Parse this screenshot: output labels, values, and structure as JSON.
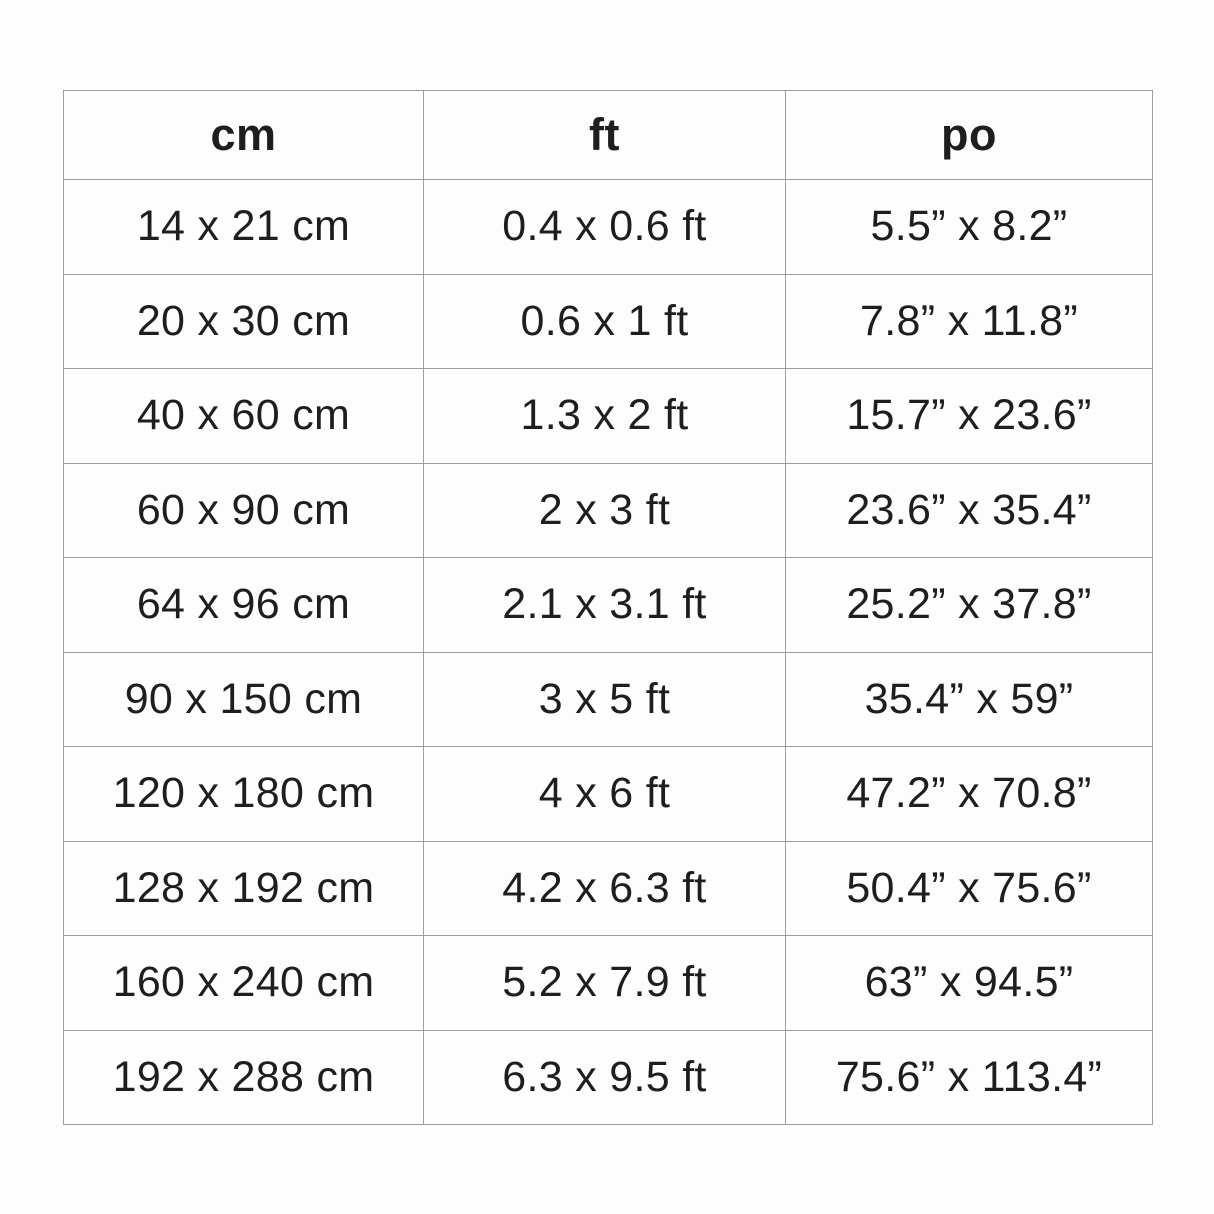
{
  "page": {
    "background": "#fdfdfd"
  },
  "chart_data": {
    "type": "table",
    "columns": [
      "cm",
      "ft",
      "po"
    ],
    "rows": [
      [
        "14 x 21 cm",
        "0.4 x 0.6 ft",
        "5.5” x 8.2”"
      ],
      [
        "20 x 30 cm",
        "0.6 x 1 ft",
        "7.8” x 11.8”"
      ],
      [
        "40 x 60 cm",
        "1.3 x 2 ft",
        "15.7” x 23.6”"
      ],
      [
        "60 x 90 cm",
        "2 x 3 ft",
        "23.6” x 35.4”"
      ],
      [
        "64 x 96 cm",
        "2.1 x 3.1 ft",
        "25.2” x 37.8”"
      ],
      [
        "90 x 150 cm",
        "3 x 5 ft",
        "35.4” x 59”"
      ],
      [
        "120 x 180 cm",
        "4 x 6 ft",
        "47.2” x 70.8”"
      ],
      [
        "128 x 192 cm",
        "4.2 x 6.3 ft",
        "50.4” x 75.6”"
      ],
      [
        "160 x 240 cm",
        "5.2 x 7.9 ft",
        "63” x 94.5”"
      ],
      [
        "192 x 288 cm",
        "6.3 x 9.5 ft",
        "75.6” x 113.4”"
      ]
    ],
    "colors": {
      "border": "#9c9c9c",
      "text": "#1e1e1e",
      "cell_background": "#fdfdfd"
    }
  }
}
